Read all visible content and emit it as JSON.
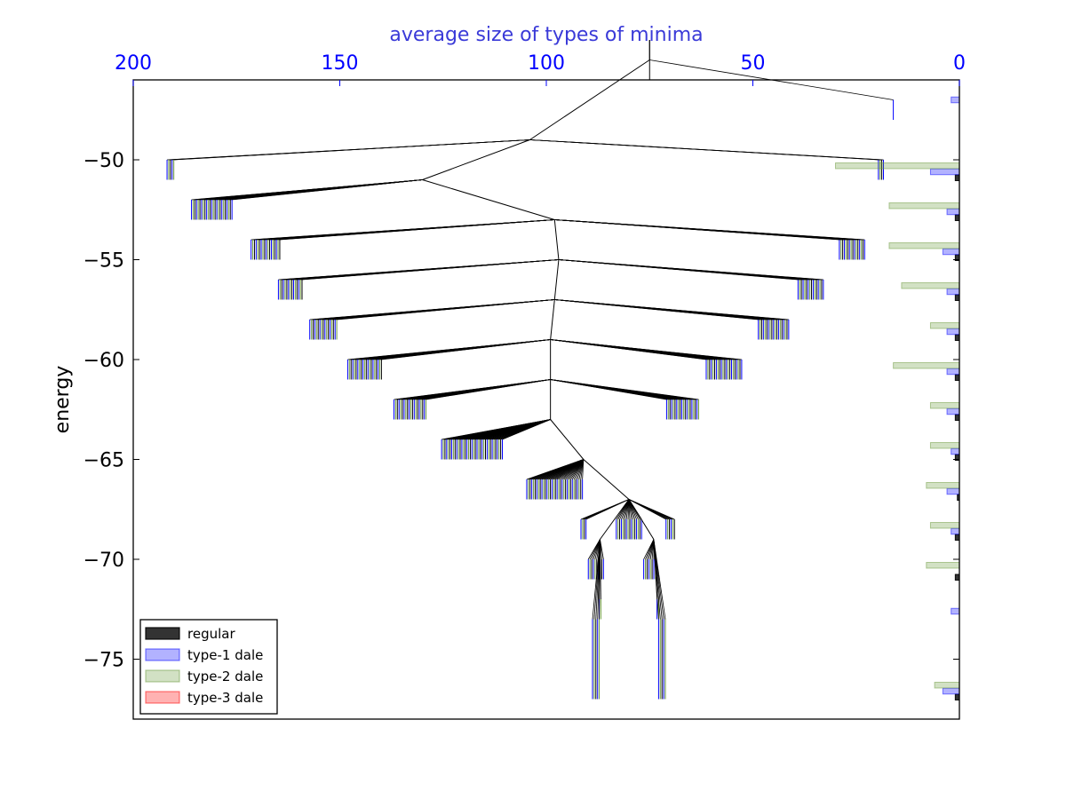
{
  "chart_data": {
    "type": "bar",
    "orientation": "horizontal",
    "title": "",
    "xlabel_top": "average size of types of minima",
    "ylabel": "energy",
    "x_top_reversed": true,
    "x_top_ticks": [
      "200",
      "150",
      "100",
      "50",
      "0"
    ],
    "y_ticks": [
      "−50",
      "−55",
      "−60",
      "−65",
      "−70",
      "−75"
    ],
    "y_tick_values": [
      -50,
      -55,
      -60,
      -65,
      -70,
      -75
    ],
    "xlim": [
      200,
      0
    ],
    "ylim": [
      -78,
      -46
    ],
    "grid": false,
    "legend_position": "lower left",
    "series": [
      {
        "name": "regular",
        "color": "#000000",
        "values": [
          {
            "energy": -50.9,
            "size": 1
          },
          {
            "energy": -52.9,
            "size": 1
          },
          {
            "energy": -54.9,
            "size": 1
          },
          {
            "energy": -56.9,
            "size": 1
          },
          {
            "energy": -58.9,
            "size": 1
          },
          {
            "energy": -60.9,
            "size": 1
          },
          {
            "energy": -62.9,
            "size": 1
          },
          {
            "energy": -64.9,
            "size": 1
          },
          {
            "energy": -66.9,
            "size": 0.5
          },
          {
            "energy": -68.9,
            "size": 1
          },
          {
            "energy": -70.9,
            "size": 1
          },
          {
            "energy": -76.9,
            "size": 1
          }
        ]
      },
      {
        "name": "type-1 dale",
        "color": "#0000ff",
        "values": [
          {
            "energy": -47.0,
            "size": 2
          },
          {
            "energy": -50.6,
            "size": 7
          },
          {
            "energy": -52.6,
            "size": 3
          },
          {
            "energy": -54.6,
            "size": 4
          },
          {
            "energy": -56.6,
            "size": 3
          },
          {
            "energy": -58.6,
            "size": 3
          },
          {
            "energy": -60.6,
            "size": 3
          },
          {
            "energy": -62.6,
            "size": 3
          },
          {
            "energy": -64.6,
            "size": 2
          },
          {
            "energy": -66.6,
            "size": 3
          },
          {
            "energy": -68.6,
            "size": 2
          },
          {
            "energy": -72.6,
            "size": 2
          },
          {
            "energy": -76.6,
            "size": 4
          }
        ]
      },
      {
        "name": "type-2 dale",
        "color": "#6b9a3c",
        "values": [
          {
            "energy": -50.3,
            "size": 30
          },
          {
            "energy": -52.3,
            "size": 17
          },
          {
            "energy": -54.3,
            "size": 17
          },
          {
            "energy": -56.3,
            "size": 14
          },
          {
            "energy": -58.3,
            "size": 7
          },
          {
            "energy": -60.3,
            "size": 16
          },
          {
            "energy": -62.3,
            "size": 7
          },
          {
            "energy": -64.3,
            "size": 7
          },
          {
            "energy": -66.3,
            "size": 8
          },
          {
            "energy": -68.3,
            "size": 7
          },
          {
            "energy": -70.3,
            "size": 8
          },
          {
            "energy": -76.3,
            "size": 6
          }
        ]
      },
      {
        "name": "type-3 dale",
        "color": "#ff0000",
        "values": []
      }
    ],
    "tree_levels": [
      {
        "energy": -44,
        "groups": [
          {
            "x": 75,
            "n": 1
          }
        ]
      },
      {
        "energy": -45,
        "groups": [
          {
            "x": 75,
            "n": 1
          }
        ]
      },
      {
        "energy": -47,
        "groups": [
          {
            "x": 16,
            "n": 1,
            "leaf_to": -48
          }
        ]
      },
      {
        "energy": -49,
        "groups": [
          {
            "x": 104,
            "n": 1
          }
        ]
      },
      {
        "energy": -50,
        "groups": [
          {
            "x": 191,
            "n": 5,
            "leaf_to": -51
          },
          {
            "x": 19,
            "n": 4,
            "leaf_to": -51
          }
        ]
      },
      {
        "energy": -51,
        "groups": [
          {
            "x": 130,
            "n": 1
          }
        ]
      },
      {
        "energy": -52,
        "groups": [
          {
            "x": 181,
            "n": 25,
            "leaf_to": -53
          }
        ]
      },
      {
        "energy": -53,
        "groups": [
          {
            "x": 98,
            "n": 1
          }
        ]
      },
      {
        "energy": -54,
        "groups": [
          {
            "x": 168,
            "n": 18,
            "leaf_to": -55
          },
          {
            "x": 26,
            "n": 16,
            "leaf_to": -55
          }
        ]
      },
      {
        "energy": -55,
        "groups": [
          {
            "x": 97,
            "n": 1
          }
        ]
      },
      {
        "energy": -56,
        "groups": [
          {
            "x": 162,
            "n": 15,
            "leaf_to": -57
          },
          {
            "x": 36,
            "n": 16,
            "leaf_to": -57
          }
        ]
      },
      {
        "energy": -57,
        "groups": [
          {
            "x": 98,
            "n": 1
          }
        ]
      },
      {
        "energy": -58,
        "groups": [
          {
            "x": 154,
            "n": 17,
            "leaf_to": -59
          },
          {
            "x": 45,
            "n": 19,
            "leaf_to": -59
          }
        ]
      },
      {
        "energy": -59,
        "groups": [
          {
            "x": 99,
            "n": 1
          }
        ]
      },
      {
        "energy": -60,
        "groups": [
          {
            "x": 144,
            "n": 21,
            "leaf_to": -61
          },
          {
            "x": 57,
            "n": 22,
            "leaf_to": -61
          }
        ]
      },
      {
        "energy": -61,
        "groups": [
          {
            "x": 99,
            "n": 1
          }
        ]
      },
      {
        "energy": -62,
        "groups": [
          {
            "x": 133,
            "n": 20,
            "leaf_to": -63
          },
          {
            "x": 67,
            "n": 20,
            "leaf_to": -63
          }
        ]
      },
      {
        "energy": -63,
        "groups": [
          {
            "x": 99,
            "n": 1
          }
        ]
      },
      {
        "energy": -64,
        "groups": [
          {
            "x": 118,
            "n": 37,
            "leaf_to": -65
          }
        ]
      },
      {
        "energy": -65,
        "groups": [
          {
            "x": 91,
            "n": 1
          }
        ]
      },
      {
        "energy": -66,
        "groups": [
          {
            "x": 98,
            "n": 34,
            "leaf_to": -67
          }
        ]
      },
      {
        "energy": -67,
        "groups": [
          {
            "x": 80,
            "n": 1
          }
        ]
      },
      {
        "energy": -68,
        "groups": [
          {
            "x": 91,
            "n": 4,
            "leaf_to": -69
          },
          {
            "x": 80,
            "n": 16,
            "leaf_to": -69
          },
          {
            "x": 70,
            "n": 6,
            "leaf_to": -69
          }
        ]
      },
      {
        "energy": -69,
        "groups": [
          {
            "x": 87,
            "n": 1
          },
          {
            "x": 74,
            "n": 1
          }
        ]
      },
      {
        "energy": -70,
        "groups": [
          {
            "x": 88,
            "n": 10,
            "leaf_to": -71
          },
          {
            "x": 75,
            "n": 8,
            "leaf_to": -71
          }
        ]
      },
      {
        "energy": -72,
        "groups": [
          {
            "x": 87,
            "n": 2,
            "leaf_to": -73
          },
          {
            "x": 73,
            "n": 2,
            "leaf_to": -73
          }
        ]
      },
      {
        "energy": -73,
        "groups": [
          {
            "x": 88,
            "n": 5,
            "leaf_to": -77
          },
          {
            "x": 72,
            "n": 5,
            "leaf_to": -77
          }
        ]
      }
    ],
    "tree_leaf_colors": [
      "#0000ff",
      "#6b9a3c",
      "#000000"
    ]
  }
}
